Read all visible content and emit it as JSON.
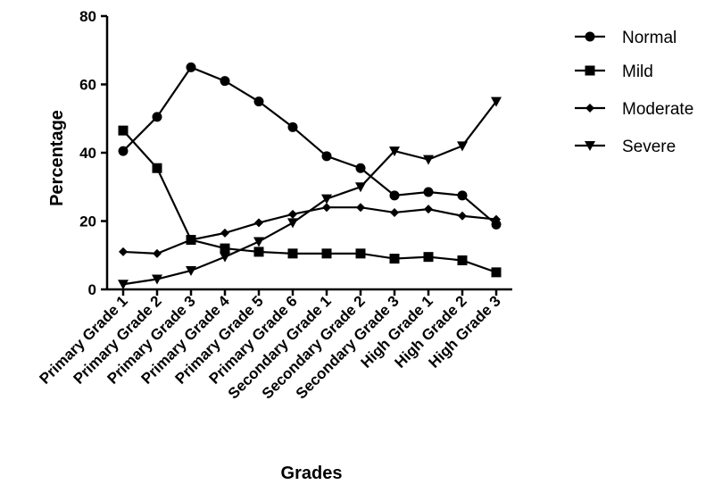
{
  "chart_data": {
    "type": "line",
    "title": "",
    "xlabel": "Grades",
    "ylabel": "Percentage",
    "ylim": [
      0,
      80
    ],
    "yticks": [
      0,
      20,
      40,
      60,
      80
    ],
    "yticks_labels": [
      "0",
      "20",
      "40",
      "60",
      "80"
    ],
    "categories": [
      "Primary Grade 1",
      "Primary Grade 2",
      "Primary Grade 3",
      "Primary Grade 4",
      "Primary Grade 5",
      "Primary Grade 6",
      "Secondary Grade 1",
      "Secondary Grade 2",
      "Secondary Grade 3",
      "High Grade 1",
      "High Grade 2",
      "High Grade 3"
    ],
    "legend_position": "top-right",
    "grid": false,
    "series": [
      {
        "name": "Normal",
        "marker": "circle",
        "color": "#000000",
        "values": [
          40.5,
          50.5,
          65,
          61,
          55,
          47.5,
          39,
          35.5,
          27.5,
          28.5,
          27.5,
          19
        ]
      },
      {
        "name": "Mild",
        "marker": "square",
        "color": "#000000",
        "values": [
          46.5,
          35.5,
          14.5,
          12,
          11,
          10.5,
          10.5,
          10.5,
          9,
          9.5,
          8.5,
          5
        ]
      },
      {
        "name": "Moderate",
        "marker": "diamond",
        "color": "#000000",
        "values": [
          11,
          10.5,
          14.5,
          16.5,
          19.5,
          22,
          24,
          24,
          22.5,
          23.5,
          21.5,
          20.5
        ]
      },
      {
        "name": "Severe",
        "marker": "triangle-down",
        "color": "#000000",
        "values": [
          1.5,
          3,
          5.5,
          9.5,
          14,
          19.5,
          26.5,
          30,
          40.5,
          38,
          42,
          55
        ]
      }
    ]
  }
}
